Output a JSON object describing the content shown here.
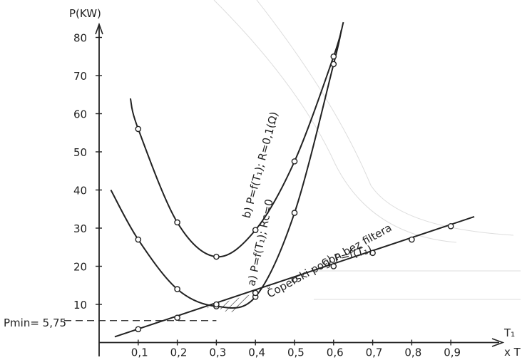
{
  "chart_data": {
    "type": "line",
    "ylabel": "P(KW)",
    "xlabel_axis": "T₁",
    "xlabel_scale": "x T",
    "xlim": [
      0,
      1.0
    ],
    "ylim": [
      0,
      85
    ],
    "x_ticks": [
      "0,1",
      "0,2",
      "0,3",
      "0,4",
      "0,5",
      "0,6",
      "0,7",
      "0,8",
      "0,9"
    ],
    "x_tick_values": [
      0.1,
      0.2,
      0.3,
      0.4,
      0.5,
      0.6,
      0.7,
      0.8,
      0.9
    ],
    "y_ticks": [
      "10",
      "20",
      "30",
      "40",
      "50",
      "60",
      "70",
      "80"
    ],
    "y_tick_values": [
      10,
      20,
      30,
      40,
      50,
      60,
      70,
      80
    ],
    "series": [
      {
        "name": "b) P=f(T₁); R=0,1(Ω)",
        "x": [
          0.1,
          0.2,
          0.3,
          0.4,
          0.5,
          0.6
        ],
        "y": [
          56,
          31.5,
          22.5,
          29.5,
          47.5,
          75
        ]
      },
      {
        "name": "a) P=f(T₁); Rc=0",
        "x": [
          0.1,
          0.2,
          0.3,
          0.4,
          0.5,
          0.6
        ],
        "y": [
          27,
          14,
          9.5,
          12,
          34,
          73
        ]
      },
      {
        "name": "c) P=f(T₁)",
        "x": [
          0.1,
          0.2,
          0.3,
          0.4,
          0.5,
          0.6,
          0.7,
          0.8,
          0.9
        ],
        "y": [
          3.5,
          6.5,
          10,
          13,
          16.5,
          20,
          23.5,
          27,
          30.5
        ]
      }
    ],
    "annotations": {
      "pmin": "Pmin= 5,75",
      "pmin_value": 5.75,
      "coper": "Čoperski pogon bez filtera"
    }
  }
}
